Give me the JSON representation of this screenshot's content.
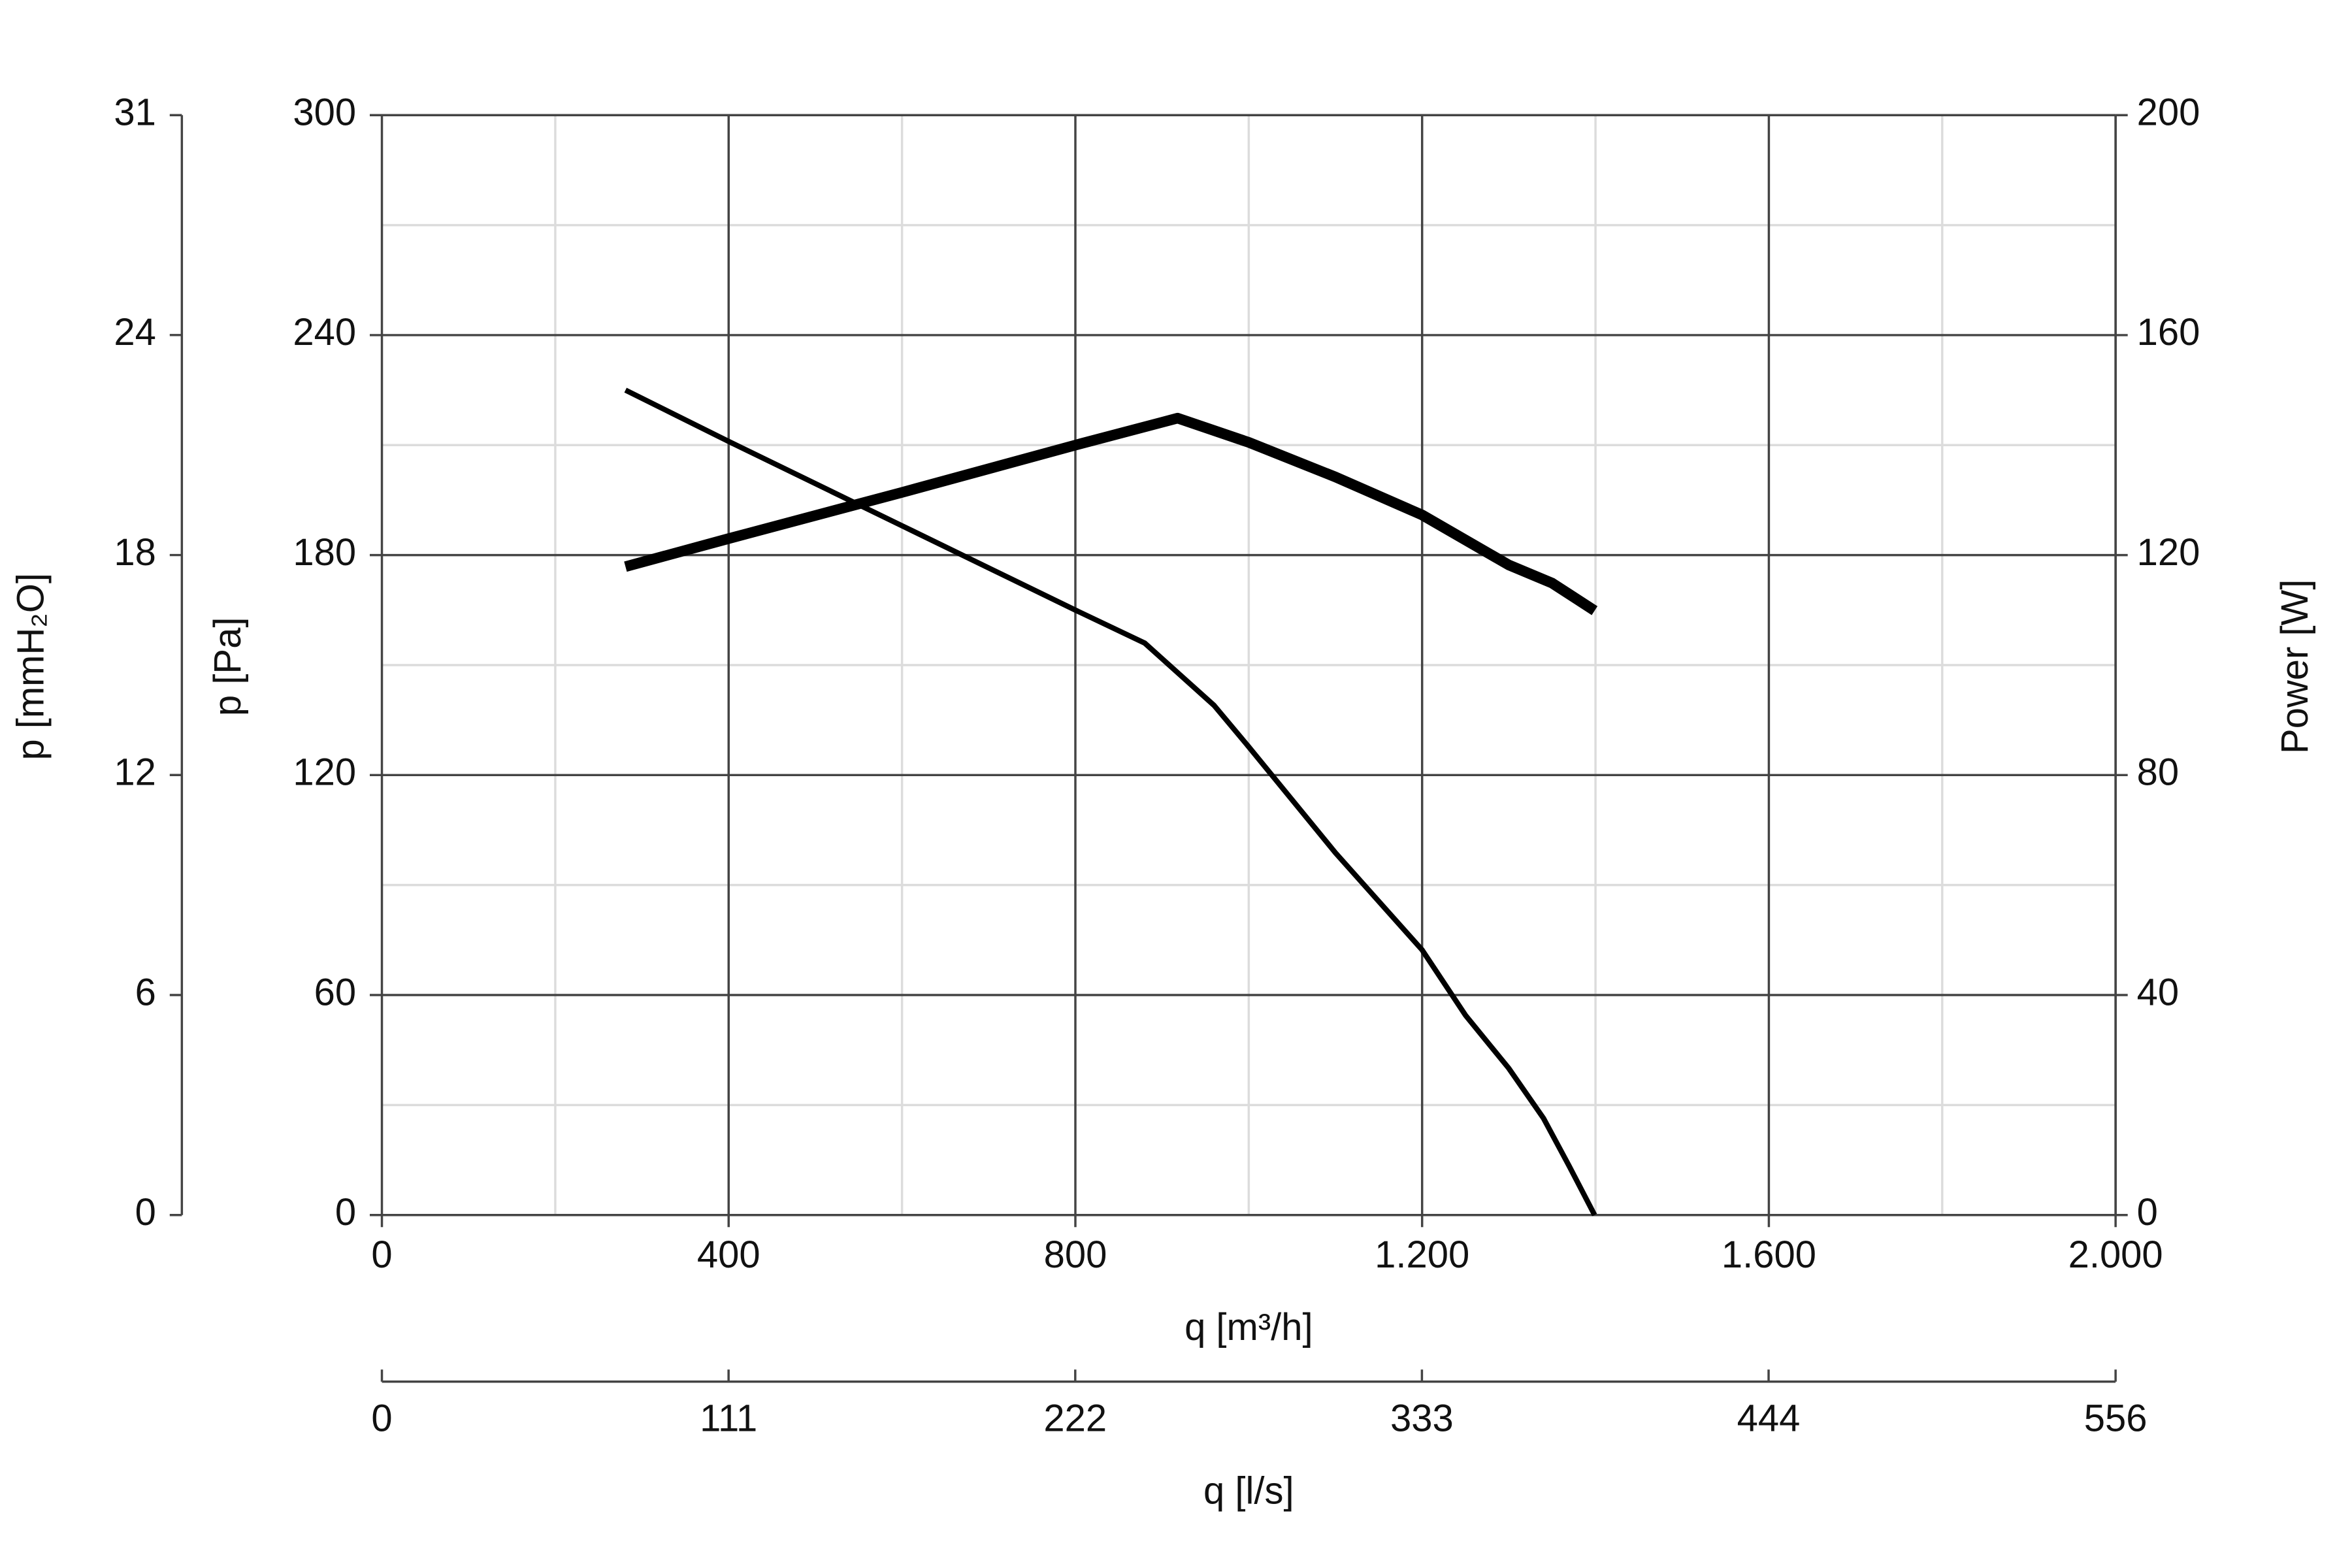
{
  "chart_data": {
    "type": "line",
    "xlabel": "q [m³/h]",
    "xlim": [
      0,
      2000
    ],
    "xticks": [
      0,
      400,
      800,
      {
        "value": 1200,
        "label": "1.200"
      },
      {
        "value": 1600,
        "label": "1.600"
      },
      {
        "value": 2000,
        "label": "2.000"
      }
    ],
    "xminorticks": [
      200,
      600,
      1000,
      1400,
      1800
    ],
    "ylabel": "p [Pa]",
    "ylim": [
      0,
      300
    ],
    "yticks": [
      0,
      60,
      120,
      180,
      240,
      300
    ],
    "yminorticks": [
      30,
      90,
      150,
      210,
      270
    ],
    "y2label": "Power [W]",
    "y2lim": [
      0,
      200
    ],
    "y2ticks": [
      0,
      40,
      80,
      120,
      160,
      200
    ],
    "y3label": "p [mmH₂O]",
    "y3lim": [
      0,
      30.59
    ],
    "y3ticks": [
      0,
      {
        "value": 6.118,
        "label": "6"
      },
      {
        "value": 12.237,
        "label": "12"
      },
      {
        "value": 18.355,
        "label": "18"
      },
      {
        "value": 24.474,
        "label": "24"
      },
      {
        "value": 30.59,
        "label": "31"
      }
    ],
    "x2label": "q [l/s]",
    "x2lim": [
      0,
      555.6
    ],
    "x2ticks": [
      0,
      {
        "value": 111.1,
        "label": "111"
      },
      {
        "value": 222.2,
        "label": "222"
      },
      {
        "value": 333.3,
        "label": "333"
      },
      {
        "value": 444.4,
        "label": "444"
      },
      {
        "value": 555.6,
        "label": "556"
      }
    ],
    "grid": true,
    "series": [
      {
        "color": "#000000",
        "x": [
          281,
          400,
          600,
          800,
          880,
          920,
          960,
          1000,
          1100,
          1200,
          1250,
          1300,
          1340,
          1370,
          1399
        ],
        "values": [
          225,
          211,
          188,
          165,
          156,
          147.5,
          139,
          127.7,
          98.8,
          72.3,
          54.5,
          40,
          26.4,
          13.2,
          0
        ]
      },
      {
        "color": "#000000",
        "axis": "y2",
        "x": [
          281,
          400,
          600,
          800,
          918,
          1000,
          1100,
          1200,
          1300,
          1350,
          1399
        ],
        "values": [
          117.9,
          123,
          131.4,
          140,
          144.9,
          140.5,
          134.2,
          127.3,
          118.2,
          114.9,
          109.9
        ]
      }
    ]
  }
}
